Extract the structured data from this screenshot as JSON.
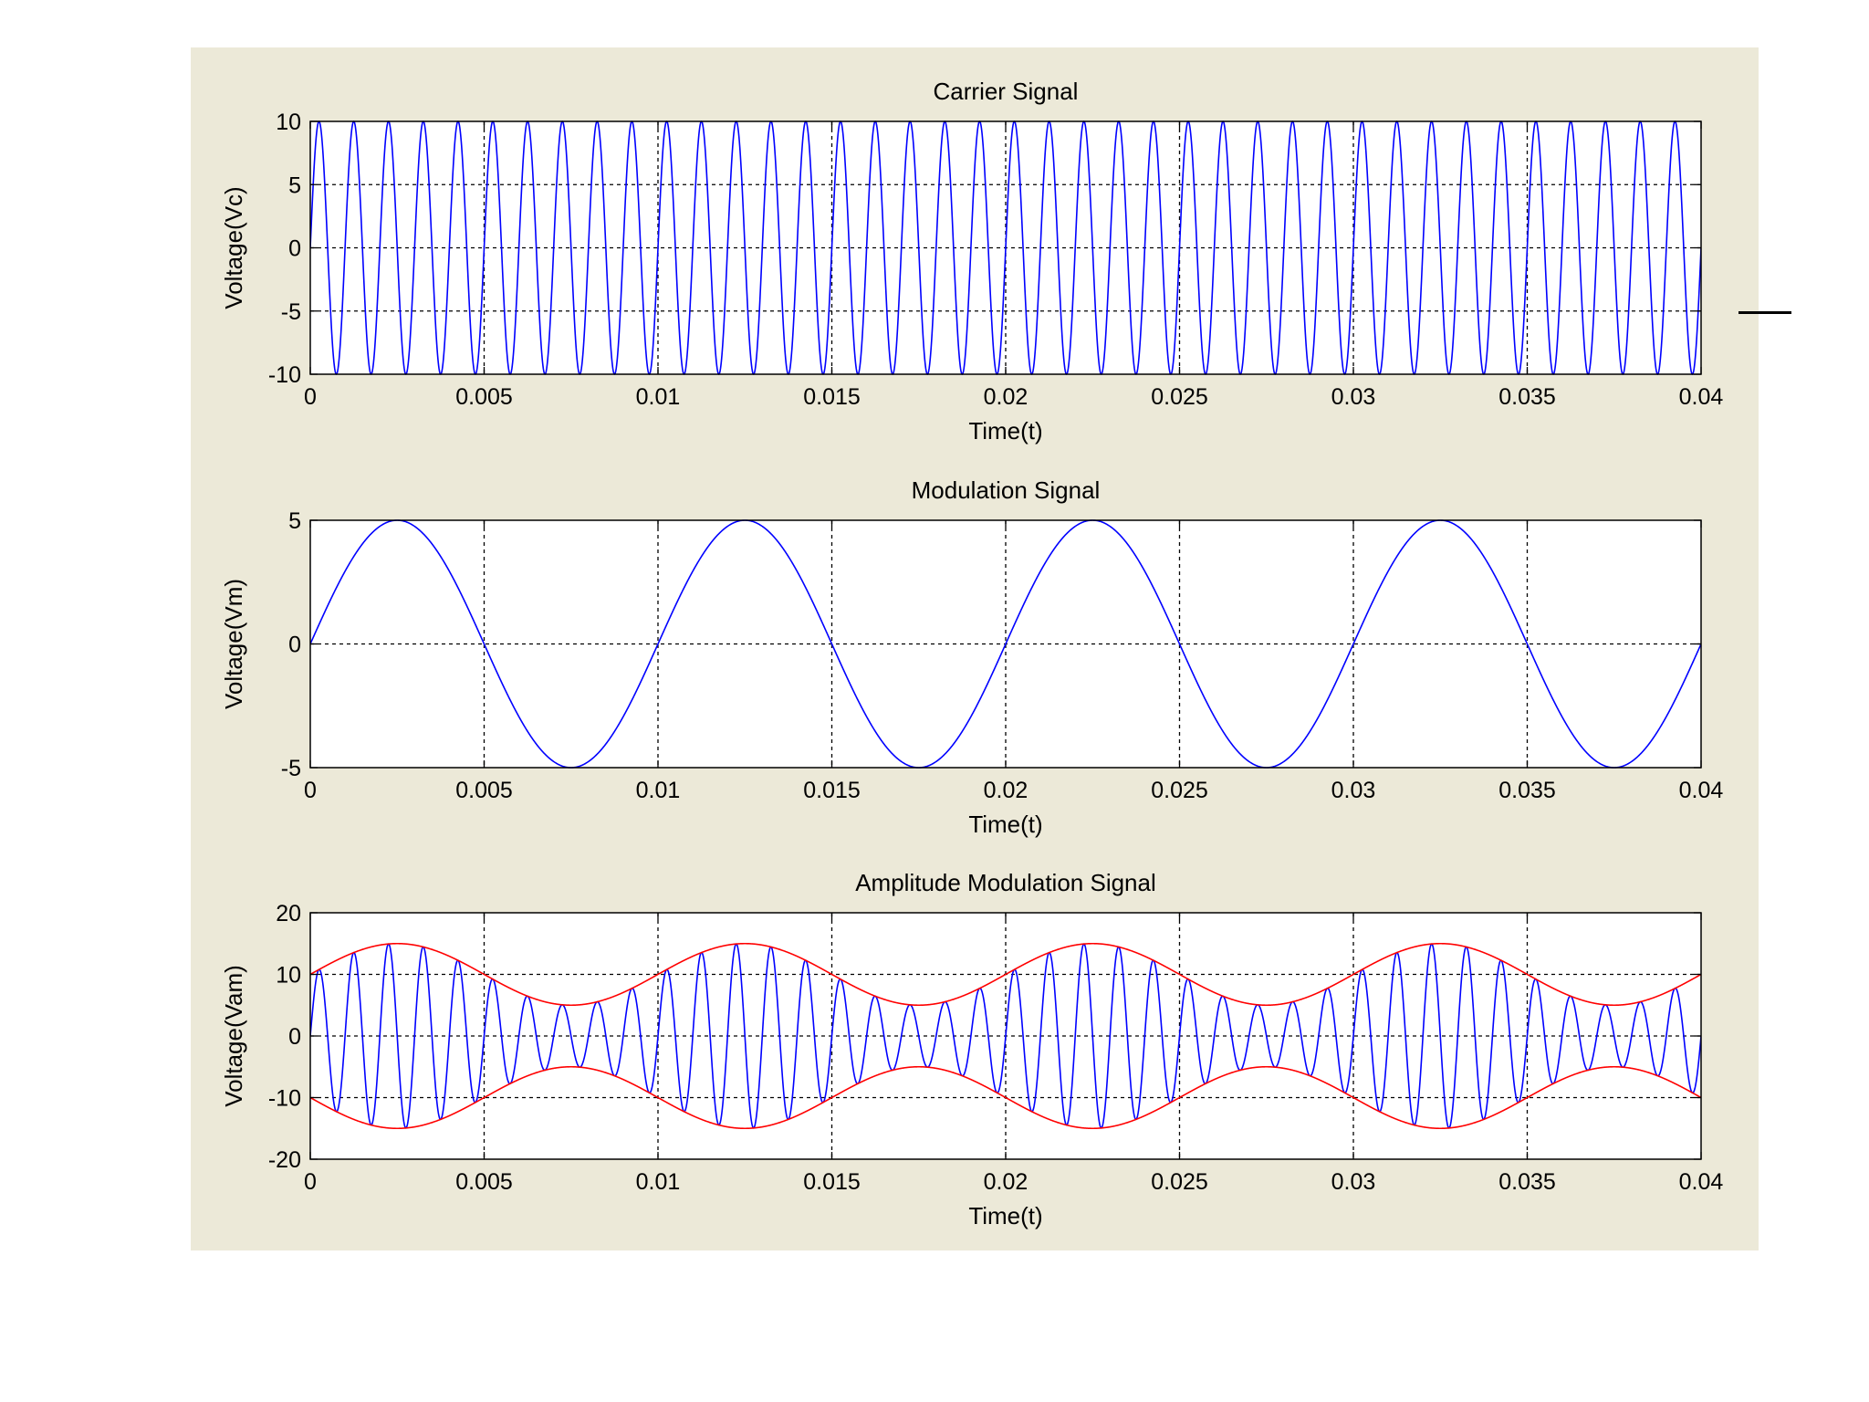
{
  "colors": {
    "figure_background": "#ece9d8",
    "axes_background": "#ffffff",
    "signal": "#0000ff",
    "envelope": "#ff0000",
    "grid": "#000000"
  },
  "chart_data": [
    {
      "type": "line",
      "title": "Carrier Signal",
      "xlabel": "Time(t)",
      "ylabel": "Voltage(Vc)",
      "xlim": [
        0,
        0.04
      ],
      "ylim": [
        -10,
        10
      ],
      "xticks": [
        0,
        0.005,
        0.01,
        0.015,
        0.02,
        0.025,
        0.03,
        0.035,
        0.04
      ],
      "xtick_labels": [
        "0",
        "0.005",
        "0.01",
        "0.015",
        "0.02",
        "0.025",
        "0.03",
        "0.035",
        "0.04"
      ],
      "yticks": [
        -10,
        -5,
        0,
        5,
        10
      ],
      "ytick_labels": [
        "-10",
        "-5",
        "0",
        "5",
        "10"
      ],
      "grid": true,
      "series": [
        {
          "kind": "sine",
          "amplitude": 10,
          "frequency_hz": 1000,
          "phase": 0,
          "color": "#0000ff"
        }
      ]
    },
    {
      "type": "line",
      "title": "Modulation Signal",
      "xlabel": "Time(t)",
      "ylabel": "Voltage(Vm)",
      "xlim": [
        0,
        0.04
      ],
      "ylim": [
        -5,
        5
      ],
      "xticks": [
        0,
        0.005,
        0.01,
        0.015,
        0.02,
        0.025,
        0.03,
        0.035,
        0.04
      ],
      "xtick_labels": [
        "0",
        "0.005",
        "0.01",
        "0.015",
        "0.02",
        "0.025",
        "0.03",
        "0.035",
        "0.04"
      ],
      "yticks": [
        -5,
        0,
        5
      ],
      "ytick_labels": [
        "-5",
        "0",
        "5"
      ],
      "grid": true,
      "series": [
        {
          "kind": "sine",
          "amplitude": 5,
          "frequency_hz": 100,
          "phase": 0,
          "color": "#0000ff"
        }
      ]
    },
    {
      "type": "line",
      "title": "Amplitude Modulation Signal",
      "xlabel": "Time(t)",
      "ylabel": "Voltage(Vam)",
      "xlim": [
        0,
        0.04
      ],
      "ylim": [
        -20,
        20
      ],
      "xticks": [
        0,
        0.005,
        0.01,
        0.015,
        0.02,
        0.025,
        0.03,
        0.035,
        0.04
      ],
      "xtick_labels": [
        "0",
        "0.005",
        "0.01",
        "0.015",
        "0.02",
        "0.025",
        "0.03",
        "0.035",
        "0.04"
      ],
      "yticks": [
        -20,
        -10,
        0,
        10,
        20
      ],
      "ytick_labels": [
        "-20",
        "-10",
        "0",
        "10",
        "20"
      ],
      "grid": true,
      "series": [
        {
          "kind": "am",
          "carrier_amplitude": 10,
          "modulation_amplitude": 5,
          "carrier_frequency_hz": 1000,
          "modulation_frequency_hz": 100,
          "color": "#0000ff"
        },
        {
          "kind": "envelope_upper",
          "carrier_amplitude": 10,
          "modulation_amplitude": 5,
          "modulation_frequency_hz": 100,
          "color": "#ff0000"
        },
        {
          "kind": "envelope_lower",
          "carrier_amplitude": 10,
          "modulation_amplitude": 5,
          "modulation_frequency_hz": 100,
          "color": "#ff0000"
        }
      ]
    }
  ]
}
